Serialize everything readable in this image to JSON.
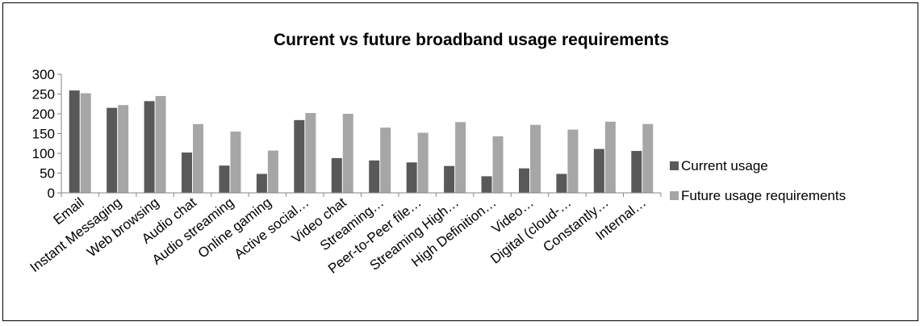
{
  "chart_data": {
    "type": "bar",
    "title": "Current vs future broadband usage requirements",
    "xlabel": "",
    "ylabel": "",
    "ylim": [
      0,
      300
    ],
    "yticks": [
      0,
      50,
      100,
      150,
      200,
      250,
      300
    ],
    "grid": false,
    "legend": "right",
    "categories": [
      "Email",
      "Instant Messaging",
      "Web browsing",
      "Audio chat",
      "Audio streaming",
      "Online gaming",
      "Active social…",
      "Video chat",
      "Streaming…",
      "Peer-to-Peer file…",
      "Streaming High…",
      "High Definition…",
      "Video…",
      "Digital (cloud-…",
      "Constantly…",
      "Internal…"
    ],
    "series": [
      {
        "name": "Current usage",
        "color": "#595959",
        "values": [
          259,
          215,
          232,
          102,
          69,
          48,
          184,
          88,
          82,
          77,
          68,
          42,
          62,
          48,
          111,
          106
        ]
      },
      {
        "name": "Future usage requirements",
        "color": "#a6a6a6",
        "values": [
          252,
          222,
          245,
          174,
          155,
          107,
          202,
          200,
          165,
          152,
          179,
          143,
          172,
          160,
          180,
          174
        ]
      }
    ]
  }
}
